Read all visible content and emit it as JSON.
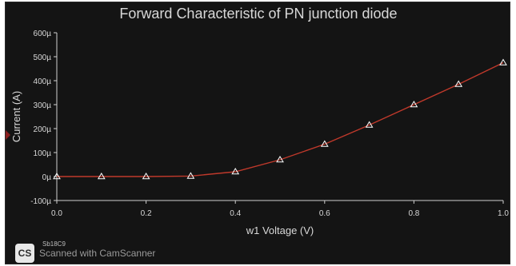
{
  "chart_data": {
    "type": "line",
    "title": "Forward Characteristic of PN junction diode",
    "xlabel": "w1 Voltage (V)",
    "ylabel": "Current (A)",
    "xlim": [
      0,
      1.0
    ],
    "ylim": [
      -100,
      600
    ],
    "x_ticks": [
      0.0,
      0.2,
      0.4,
      0.6,
      0.8,
      1.0
    ],
    "x_tick_labels": [
      "0.0",
      "0.2",
      "0.4",
      "0.6",
      "0.8",
      "1.0"
    ],
    "y_ticks": [
      -100,
      0,
      100,
      200,
      300,
      400,
      500,
      600
    ],
    "y_tick_labels": [
      "-100µ",
      "0µ",
      "100µ",
      "200µ",
      "300µ",
      "400µ",
      "500µ",
      "600µ"
    ],
    "grid": false,
    "series": [
      {
        "color": "#c0392b",
        "marker": "triangle",
        "x": [
          0.0,
          0.1,
          0.2,
          0.3,
          0.4,
          0.5,
          0.6,
          0.7,
          0.8,
          0.9,
          1.0
        ],
        "y": [
          0,
          0,
          0,
          2,
          20,
          70,
          135,
          215,
          300,
          385,
          475
        ]
      }
    ]
  },
  "watermark": {
    "logo_text": "CS",
    "tag_text": "Sb18C9",
    "text": "Scanned with CamScanner"
  },
  "colors": {
    "background": "#141414",
    "axis": "#cfcfcf",
    "text": "#d8d8d8",
    "line": "#c0392b",
    "marker": "#ffffff"
  }
}
